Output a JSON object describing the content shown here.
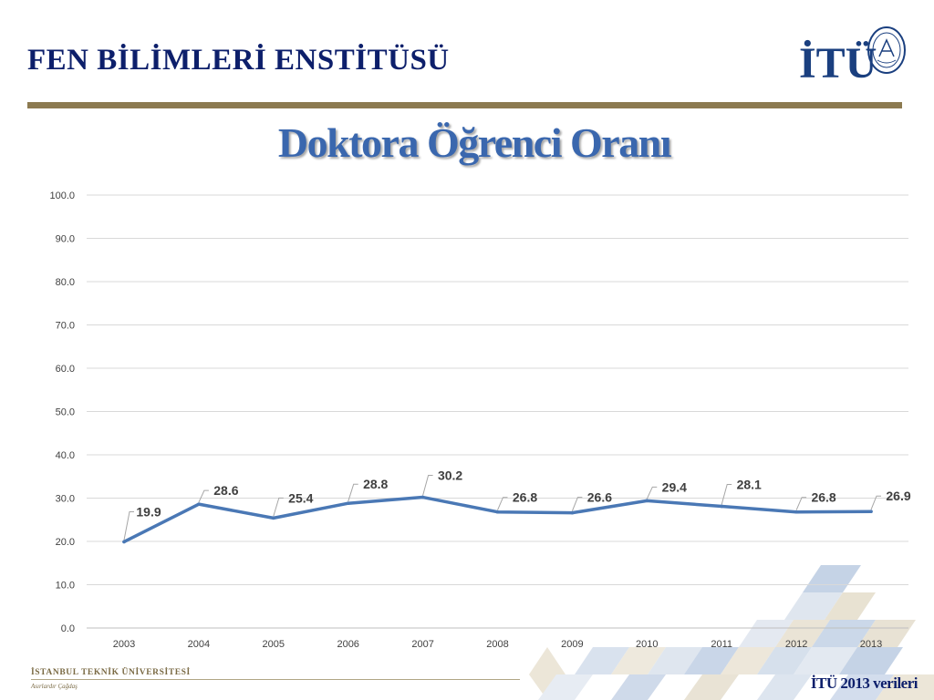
{
  "header": {
    "institute_title": "FEN BİLİMLERİ ENSTİTÜSÜ",
    "logo_text": "İTÜ",
    "rule_color": "#8c7a50"
  },
  "slide": {
    "title": "Doktora Öğrenci Oranı"
  },
  "chart_data": {
    "type": "line",
    "title": "",
    "xlabel": "",
    "ylabel": "",
    "categories": [
      "2003",
      "2004",
      "2005",
      "2006",
      "2007",
      "2008",
      "2009",
      "2010",
      "2011",
      "2012",
      "2013"
    ],
    "series": [
      {
        "values": [
          19.9,
          28.6,
          25.4,
          28.8,
          30.2,
          26.8,
          26.6,
          29.4,
          28.1,
          26.8,
          26.9
        ]
      }
    ],
    "data_labels": [
      "19.9",
      "28.6",
      "25.4",
      "28.8",
      "30.2",
      "26.8",
      "26.6",
      "29.4",
      "28.1",
      "26.8",
      "26.9"
    ],
    "ylim": [
      0,
      100
    ],
    "yticks": [
      "0.0",
      "10.0",
      "20.0",
      "30.0",
      "40.0",
      "50.0",
      "60.0",
      "70.0",
      "80.0",
      "90.0",
      "100.0"
    ],
    "grid": true,
    "legend": "none",
    "line_color": "#4a78b5"
  },
  "footer": {
    "university": "İSTANBUL TEKNİK ÜNİVERSİTESİ",
    "motto": "Asırlardır Çağdaş",
    "note": "İTÜ 2013 verileri"
  }
}
